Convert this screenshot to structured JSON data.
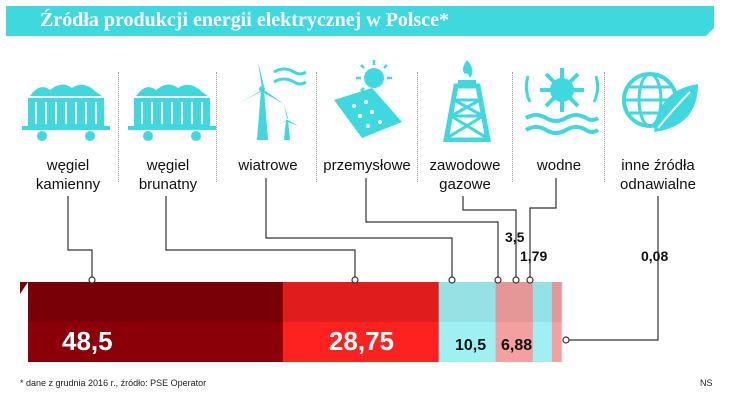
{
  "header": {
    "title": "Źródła produkcji energii elektrycznej w Polsce*"
  },
  "categories": [
    {
      "label": "węgiel\nkamienny",
      "icon": "coal-wagon-icon"
    },
    {
      "label": "węgiel\nbrunatny",
      "icon": "coal-wagon-icon"
    },
    {
      "label": "wiatrowe",
      "icon": "wind-turbine-icon"
    },
    {
      "label": "przemysłowe",
      "icon": "solar-panel-icon"
    },
    {
      "label": "zawodowe\ngazowe",
      "icon": "gas-rig-icon"
    },
    {
      "label": "wodne",
      "icon": "water-wheel-icon"
    },
    {
      "label": "inne źródła\nodnawialne",
      "icon": "globe-leaf-icon"
    }
  ],
  "footer": {
    "note": "* dane z grudnia 2016 r., źródło: PSE Operator",
    "credit": "NS"
  },
  "colors": {
    "accent": "#3fd8de",
    "coal_hard": "#8b0008",
    "coal_brown": "#ff2020",
    "wind": "#9ff0f3",
    "industrial": "#f4a0a0",
    "gas": "#9ff0f3",
    "water": "#f4a0a0",
    "other": "#d6f4f5"
  },
  "chart_data": {
    "type": "bar",
    "orientation": "stacked-horizontal",
    "categories": [
      "węgiel kamienny",
      "węgiel brunatny",
      "wiatrowe",
      "przemysłowe",
      "zawodowe gazowe",
      "wodne",
      "inne źródła odnawialne"
    ],
    "values": [
      48.5,
      28.75,
      10.5,
      6.88,
      3.5,
      1.79,
      0.08
    ],
    "value_labels": [
      "48,5",
      "28,75",
      "10,5",
      "6,88",
      "3,5",
      "1,79",
      "0,08"
    ],
    "title": "Źródła produkcji energii elektrycznej w Polsce*",
    "legend": "none"
  }
}
